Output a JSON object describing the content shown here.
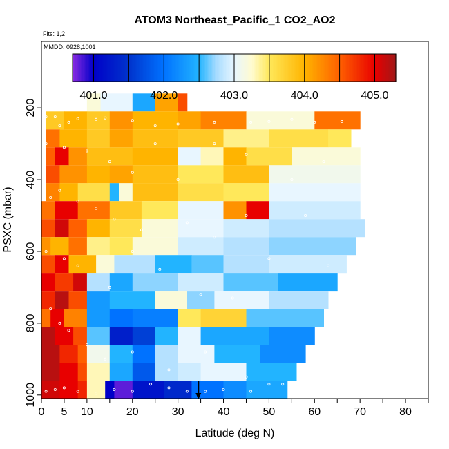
{
  "chart_data": {
    "type": "heatmap",
    "title": "ATOM3 Northeast_Pacific_1 CO2_AO2",
    "annotations": [
      "Flts: 1,2",
      "MMDD: 0928,1001"
    ],
    "xlabel": "Latitude (deg N)",
    "ylabel": "PSXC (mbar)",
    "xlim": [
      0,
      85
    ],
    "ylim": [
      1010,
      15
    ],
    "x_tick_labels": [
      {
        "value": 0,
        "label": "0"
      },
      {
        "value": 5,
        "label": "5"
      },
      {
        "value": 10,
        "label": "10"
      },
      {
        "value": 20,
        "label": "20"
      },
      {
        "value": 30,
        "label": "30"
      },
      {
        "value": 40,
        "label": "40"
      },
      {
        "value": 50,
        "label": "50"
      },
      {
        "value": 60,
        "label": "60"
      },
      {
        "value": 70,
        "label": "70"
      },
      {
        "value": 80,
        "label": "80"
      }
    ],
    "x_minor_ticks": [
      0,
      5,
      10,
      15,
      20,
      25,
      30,
      35,
      40,
      45,
      50,
      55,
      60,
      65,
      70,
      75,
      80,
      85
    ],
    "y_tick_labels": [
      {
        "value": 200,
        "label": "200"
      },
      {
        "value": 400,
        "label": "400"
      },
      {
        "value": 600,
        "label": "600"
      },
      {
        "value": 800,
        "label": "800"
      },
      {
        "value": 1000,
        "label": "1000"
      }
    ],
    "colorbar": {
      "min": 400.7,
      "max": 405.3,
      "tick_labels": [
        {
          "value": 401.0,
          "label": "401.0"
        },
        {
          "value": 402.0,
          "label": "402.0"
        },
        {
          "value": 403.0,
          "label": "403.0"
        },
        {
          "value": 404.0,
          "label": "404.0"
        },
        {
          "value": 405.0,
          "label": "405.0"
        }
      ],
      "boundaries": [
        401.0,
        401.5,
        402.0,
        402.5,
        403.0,
        403.5,
        404.0,
        404.5,
        405.0
      ],
      "colors": [
        {
          "value": 400.7,
          "color": "#8b2be2"
        },
        {
          "value": 401.0,
          "color": "#0000c8"
        },
        {
          "value": 401.5,
          "color": "#0033cc"
        },
        {
          "value": 402.0,
          "color": "#0072ff"
        },
        {
          "value": 402.5,
          "color": "#22b4ff"
        },
        {
          "value": 402.75,
          "color": "#a8dcff"
        },
        {
          "value": 403.0,
          "color": "#e8f6ff"
        },
        {
          "value": 403.25,
          "color": "#fffbd0"
        },
        {
          "value": 403.5,
          "color": "#ffe85a"
        },
        {
          "value": 404.0,
          "color": "#ffb400"
        },
        {
          "value": 404.5,
          "color": "#ff6000"
        },
        {
          "value": 405.0,
          "color": "#e80000"
        },
        {
          "value": 405.3,
          "color": "#a01818"
        }
      ]
    },
    "layers": [
      {
        "p_top": 160,
        "p_bot": 210,
        "segments": [
          [
            10,
            13,
            403.2
          ],
          [
            13,
            20,
            403.0
          ],
          [
            20,
            25,
            402.4
          ],
          [
            25,
            30,
            404.1
          ],
          [
            30,
            32,
            404.6
          ]
        ]
      },
      {
        "p_top": 210,
        "p_bot": 260,
        "segments": [
          [
            1,
            5,
            403.8
          ],
          [
            5,
            10,
            404.0
          ],
          [
            10,
            15,
            403.8
          ],
          [
            15,
            20,
            404.2
          ],
          [
            20,
            30,
            404.0
          ],
          [
            30,
            35,
            404.1
          ],
          [
            35,
            45,
            404.3
          ],
          [
            45,
            60,
            403.2
          ],
          [
            60,
            70,
            404.4
          ]
        ]
      },
      {
        "p_top": 260,
        "p_bot": 310,
        "segments": [
          [
            1,
            4,
            404.4
          ],
          [
            4,
            10,
            404.0
          ],
          [
            10,
            15,
            403.8
          ],
          [
            15,
            20,
            404.1
          ],
          [
            20,
            30,
            403.9
          ],
          [
            30,
            40,
            403.8
          ],
          [
            40,
            50,
            403.4
          ],
          [
            50,
            63,
            403.6
          ],
          [
            63,
            68,
            403.5
          ]
        ]
      },
      {
        "p_top": 310,
        "p_bot": 360,
        "segments": [
          [
            1,
            3,
            404.5
          ],
          [
            3,
            6,
            405.0
          ],
          [
            6,
            10,
            404.2
          ],
          [
            10,
            20,
            403.9
          ],
          [
            20,
            30,
            404.0
          ],
          [
            30,
            35,
            403.0
          ],
          [
            35,
            40,
            403.3
          ],
          [
            40,
            45,
            404.0
          ],
          [
            45,
            55,
            403.6
          ],
          [
            55,
            70,
            403.2
          ]
        ]
      },
      {
        "p_top": 360,
        "p_bot": 410,
        "segments": [
          [
            1,
            4,
            404.6
          ],
          [
            4,
            10,
            404.2
          ],
          [
            10,
            15,
            404.0
          ],
          [
            15,
            20,
            404.1
          ],
          [
            20,
            30,
            403.9
          ],
          [
            30,
            40,
            403.5
          ],
          [
            40,
            50,
            403.9
          ],
          [
            50,
            70,
            403.1
          ]
        ]
      },
      {
        "p_top": 410,
        "p_bot": 460,
        "segments": [
          [
            1,
            4,
            404.3
          ],
          [
            4,
            8,
            404.0
          ],
          [
            8,
            15,
            403.6
          ],
          [
            15,
            17,
            402.5
          ],
          [
            17,
            20,
            403.2
          ],
          [
            20,
            30,
            403.9
          ],
          [
            30,
            40,
            403.6
          ],
          [
            40,
            50,
            403.5
          ],
          [
            50,
            70,
            403.0
          ]
        ]
      },
      {
        "p_top": 460,
        "p_bot": 510,
        "segments": [
          [
            0,
            3,
            404.4
          ],
          [
            3,
            8,
            405.0
          ],
          [
            8,
            15,
            404.4
          ],
          [
            15,
            22,
            403.8
          ],
          [
            22,
            30,
            403.5
          ],
          [
            30,
            40,
            403.0
          ],
          [
            40,
            45,
            404.2
          ],
          [
            45,
            50,
            405.0
          ],
          [
            50,
            70,
            402.9
          ]
        ]
      },
      {
        "p_top": 510,
        "p_bot": 560,
        "segments": [
          [
            0,
            3,
            404.6
          ],
          [
            3,
            6,
            405.1
          ],
          [
            6,
            10,
            404.5
          ],
          [
            10,
            15,
            404.0
          ],
          [
            15,
            22,
            403.6
          ],
          [
            22,
            30,
            403.2
          ],
          [
            30,
            40,
            403.0
          ],
          [
            40,
            50,
            402.9
          ],
          [
            50,
            71,
            402.8
          ]
        ]
      },
      {
        "p_top": 560,
        "p_bot": 610,
        "segments": [
          [
            0,
            2,
            404.2
          ],
          [
            2,
            6,
            404.0
          ],
          [
            6,
            10,
            404.4
          ],
          [
            10,
            15,
            403.4
          ],
          [
            15,
            20,
            403.5
          ],
          [
            20,
            30,
            403.2
          ],
          [
            30,
            40,
            402.9
          ],
          [
            40,
            50,
            402.8
          ],
          [
            50,
            69,
            402.7
          ]
        ]
      },
      {
        "p_top": 610,
        "p_bot": 660,
        "segments": [
          [
            0,
            3,
            404.6
          ],
          [
            3,
            6,
            405.0
          ],
          [
            6,
            12,
            404.0
          ],
          [
            12,
            16,
            403.2
          ],
          [
            16,
            25,
            402.8
          ],
          [
            25,
            33,
            402.5
          ],
          [
            33,
            40,
            402.6
          ],
          [
            40,
            50,
            402.8
          ],
          [
            50,
            67,
            402.9
          ]
        ]
      },
      {
        "p_top": 660,
        "p_bot": 710,
        "segments": [
          [
            0,
            3,
            405.0
          ],
          [
            3,
            7,
            404.7
          ],
          [
            7,
            10,
            405.1
          ],
          [
            10,
            15,
            402.8
          ],
          [
            15,
            20,
            402.4
          ],
          [
            20,
            30,
            402.7
          ],
          [
            30,
            40,
            402.9
          ],
          [
            40,
            52,
            402.6
          ],
          [
            52,
            65,
            402.4
          ]
        ]
      },
      {
        "p_top": 710,
        "p_bot": 760,
        "segments": [
          [
            0,
            3,
            404.8
          ],
          [
            3,
            6,
            405.2
          ],
          [
            6,
            10,
            404.6
          ],
          [
            10,
            15,
            402.3
          ],
          [
            15,
            25,
            402.5
          ],
          [
            25,
            32,
            403.2
          ],
          [
            32,
            38,
            402.7
          ],
          [
            38,
            50,
            403.0
          ],
          [
            50,
            63,
            402.8
          ]
        ]
      },
      {
        "p_top": 760,
        "p_bot": 810,
        "segments": [
          [
            0,
            2,
            404.4
          ],
          [
            2,
            5,
            405.0
          ],
          [
            5,
            10,
            404.3
          ],
          [
            10,
            15,
            402.3
          ],
          [
            15,
            20,
            402.0
          ],
          [
            20,
            30,
            402.1
          ],
          [
            30,
            35,
            403.5
          ],
          [
            35,
            45,
            403.7
          ],
          [
            45,
            62,
            402.6
          ]
        ]
      },
      {
        "p_top": 810,
        "p_bot": 860,
        "segments": [
          [
            0,
            3,
            405.2
          ],
          [
            3,
            7,
            405.0
          ],
          [
            7,
            10,
            404.6
          ],
          [
            10,
            15,
            402.6
          ],
          [
            15,
            20,
            401.3
          ],
          [
            20,
            25,
            401.6
          ],
          [
            25,
            30,
            402.5
          ],
          [
            30,
            35,
            403.0
          ],
          [
            35,
            50,
            402.4
          ],
          [
            50,
            60,
            402.2
          ]
        ]
      },
      {
        "p_top": 860,
        "p_bot": 910,
        "segments": [
          [
            0,
            4,
            405.2
          ],
          [
            4,
            8,
            404.8
          ],
          [
            8,
            10,
            404.5
          ],
          [
            10,
            15,
            403.1
          ],
          [
            15,
            20,
            402.5
          ],
          [
            20,
            25,
            402.0
          ],
          [
            25,
            30,
            402.8
          ],
          [
            30,
            38,
            403.0
          ],
          [
            38,
            48,
            402.5
          ],
          [
            48,
            58,
            402.2
          ]
        ]
      },
      {
        "p_top": 910,
        "p_bot": 960,
        "segments": [
          [
            0,
            4,
            405.2
          ],
          [
            4,
            8,
            405.0
          ],
          [
            8,
            10,
            404.6
          ],
          [
            10,
            15,
            403.3
          ],
          [
            15,
            20,
            402.4
          ],
          [
            20,
            25,
            401.8
          ],
          [
            25,
            30,
            402.8
          ],
          [
            30,
            35,
            402.9
          ],
          [
            35,
            45,
            403.0
          ],
          [
            45,
            56,
            402.5
          ]
        ]
      },
      {
        "p_top": 960,
        "p_bot": 1010,
        "segments": [
          [
            0,
            4,
            405.1
          ],
          [
            4,
            8,
            405.0
          ],
          [
            8,
            10,
            404.8
          ],
          [
            10,
            14,
            403.3
          ],
          [
            14,
            16,
            401.0
          ],
          [
            16,
            20,
            400.8
          ],
          [
            20,
            27,
            401.2
          ],
          [
            27,
            33,
            401.4
          ],
          [
            33,
            40,
            402.0
          ],
          [
            40,
            45,
            402.2
          ],
          [
            45,
            54,
            402.4
          ]
        ]
      }
    ],
    "sample_points": [
      [
        1,
        225
      ],
      [
        3,
        225
      ],
      [
        4,
        250
      ],
      [
        6,
        240
      ],
      [
        8,
        230
      ],
      [
        12,
        232
      ],
      [
        14,
        228
      ],
      [
        20,
        235
      ],
      [
        25,
        250
      ],
      [
        30,
        245
      ],
      [
        38,
        240
      ],
      [
        46,
        240
      ],
      [
        50,
        238
      ],
      [
        55,
        232
      ],
      [
        60,
        240
      ],
      [
        66,
        238
      ],
      [
        1,
        300
      ],
      [
        5,
        310
      ],
      [
        10,
        320
      ],
      [
        15,
        350
      ],
      [
        20,
        380
      ],
      [
        25,
        300
      ],
      [
        30,
        400
      ],
      [
        38,
        300
      ],
      [
        45,
        330
      ],
      [
        55,
        400
      ],
      [
        62,
        350
      ],
      [
        2,
        450
      ],
      [
        4,
        430
      ],
      [
        8,
        460
      ],
      [
        12,
        480
      ],
      [
        16,
        510
      ],
      [
        22,
        540
      ],
      [
        32,
        520
      ],
      [
        38,
        560
      ],
      [
        45,
        500
      ],
      [
        58,
        500
      ],
      [
        1,
        600
      ],
      [
        5,
        620
      ],
      [
        8,
        640
      ],
      [
        15,
        700
      ],
      [
        20,
        600
      ],
      [
        26,
        650
      ],
      [
        35,
        720
      ],
      [
        42,
        730
      ],
      [
        50,
        620
      ],
      [
        63,
        640
      ],
      [
        2,
        760
      ],
      [
        4,
        800
      ],
      [
        6,
        820
      ],
      [
        10,
        860
      ],
      [
        14,
        900
      ],
      [
        20,
        880
      ],
      [
        28,
        930
      ],
      [
        36,
        880
      ],
      [
        45,
        950
      ],
      [
        53,
        970
      ],
      [
        1,
        990
      ],
      [
        3,
        985
      ],
      [
        5,
        980
      ],
      [
        8,
        990
      ],
      [
        12,
        995
      ],
      [
        16,
        985
      ],
      [
        20,
        990
      ],
      [
        24,
        970
      ],
      [
        28,
        980
      ],
      [
        32,
        990
      ],
      [
        36,
        990
      ],
      [
        40,
        985
      ],
      [
        46,
        990
      ],
      [
        50,
        970
      ]
    ],
    "arrow": {
      "x": 34.5,
      "p_from": 960,
      "p_to": 1010
    }
  }
}
